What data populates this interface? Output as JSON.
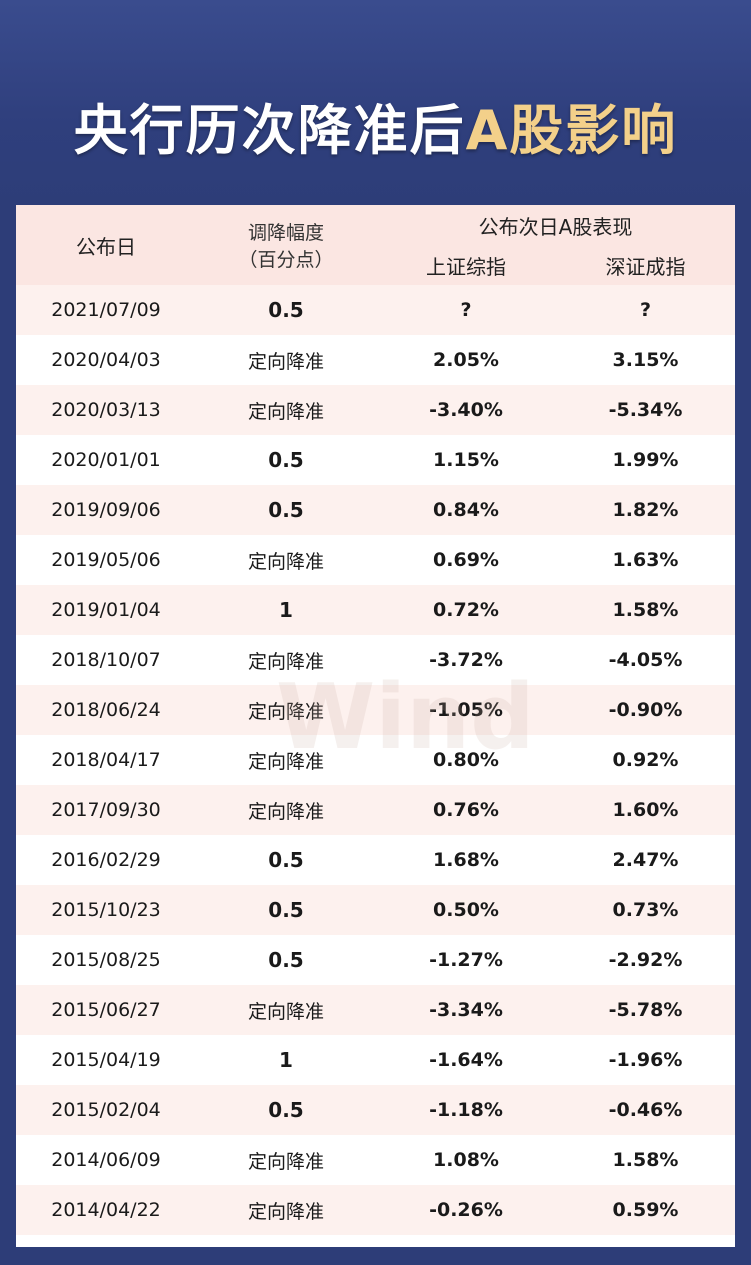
{
  "title_main": "央行历次降准后",
  "title_accent": "A股影响",
  "watermark": "Wind",
  "headers": {
    "date": "公布日",
    "cut_line1": "调降幅度",
    "cut_line2": "（百分点）",
    "next_day": "公布次日A股表现",
    "sh": "上证综指",
    "sz": "深证成指"
  },
  "colors": {
    "up": "#8b1a1a",
    "down": "#3d8a2a",
    "header_bg": "#fbe6e2",
    "frame": "#2d3d78"
  },
  "rows": [
    {
      "date": "2021/07/09",
      "cut": "0.5",
      "sh": "?",
      "sz": "?",
      "sh_dir": "q",
      "sz_dir": "q"
    },
    {
      "date": "2020/04/03",
      "cut": "定向降准",
      "sh": "2.05%",
      "sz": "3.15%",
      "sh_dir": "up",
      "sz_dir": "up"
    },
    {
      "date": "2020/03/13",
      "cut": "定向降准",
      "sh": "-3.40%",
      "sz": "-5.34%",
      "sh_dir": "down",
      "sz_dir": "down"
    },
    {
      "date": "2020/01/01",
      "cut": "0.5",
      "sh": "1.15%",
      "sz": "1.99%",
      "sh_dir": "up",
      "sz_dir": "up"
    },
    {
      "date": "2019/09/06",
      "cut": "0.5",
      "sh": "0.84%",
      "sz": "1.82%",
      "sh_dir": "up",
      "sz_dir": "up"
    },
    {
      "date": "2019/05/06",
      "cut": "定向降准",
      "sh": "0.69%",
      "sz": "1.63%",
      "sh_dir": "up",
      "sz_dir": "up"
    },
    {
      "date": "2019/01/04",
      "cut": "1",
      "sh": "0.72%",
      "sz": "1.58%",
      "sh_dir": "up",
      "sz_dir": "up"
    },
    {
      "date": "2018/10/07",
      "cut": "定向降准",
      "sh": "-3.72%",
      "sz": "-4.05%",
      "sh_dir": "down",
      "sz_dir": "down"
    },
    {
      "date": "2018/06/24",
      "cut": "定向降准",
      "sh": "-1.05%",
      "sz": "-0.90%",
      "sh_dir": "down",
      "sz_dir": "down"
    },
    {
      "date": "2018/04/17",
      "cut": "定向降准",
      "sh": "0.80%",
      "sz": "0.92%",
      "sh_dir": "up",
      "sz_dir": "up"
    },
    {
      "date": "2017/09/30",
      "cut": "定向降准",
      "sh": "0.76%",
      "sz": "1.60%",
      "sh_dir": "up",
      "sz_dir": "up"
    },
    {
      "date": "2016/02/29",
      "cut": "0.5",
      "sh": "1.68%",
      "sz": "2.47%",
      "sh_dir": "up",
      "sz_dir": "up"
    },
    {
      "date": "2015/10/23",
      "cut": "0.5",
      "sh": "0.50%",
      "sz": "0.73%",
      "sh_dir": "up",
      "sz_dir": "up"
    },
    {
      "date": "2015/08/25",
      "cut": "0.5",
      "sh": "-1.27%",
      "sz": "-2.92%",
      "sh_dir": "down",
      "sz_dir": "down"
    },
    {
      "date": "2015/06/27",
      "cut": "定向降准",
      "sh": "-3.34%",
      "sz": "-5.78%",
      "sh_dir": "down",
      "sz_dir": "down"
    },
    {
      "date": "2015/04/19",
      "cut": "1",
      "sh": "-1.64%",
      "sz": "-1.96%",
      "sh_dir": "down",
      "sz_dir": "down"
    },
    {
      "date": "2015/02/04",
      "cut": "0.5",
      "sh": "-1.18%",
      "sz": "-0.46%",
      "sh_dir": "down",
      "sz_dir": "down"
    },
    {
      "date": "2014/06/09",
      "cut": "定向降准",
      "sh": "1.08%",
      "sz": "1.58%",
      "sh_dir": "up",
      "sz_dir": "up"
    },
    {
      "date": "2014/04/22",
      "cut": "定向降准",
      "sh": "-0.26%",
      "sz": "0.59%",
      "sh_dir": "down",
      "sz_dir": "up"
    }
  ]
}
